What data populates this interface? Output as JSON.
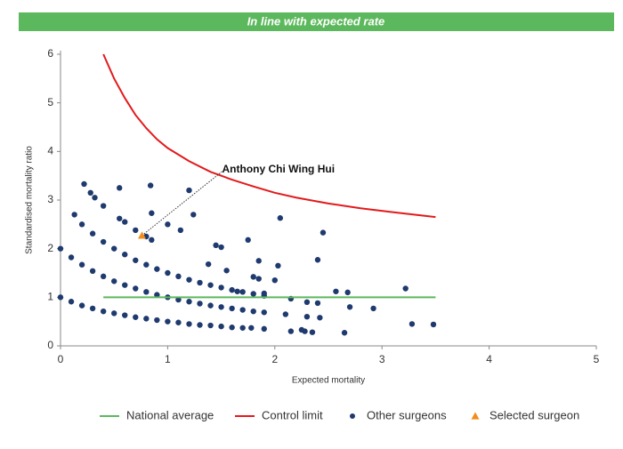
{
  "chart_data": {
    "type": "scatter",
    "banner": "In line with expected rate",
    "xlabel": "Expected mortality",
    "ylabel": "Standardised mortality ratio",
    "xlim": [
      0,
      5
    ],
    "ylim": [
      0,
      6
    ],
    "xticks": [
      0,
      1,
      2,
      3,
      4,
      5
    ],
    "yticks": [
      0,
      1,
      2,
      3,
      4,
      5,
      6
    ],
    "annotation": "Anthony Chi Wing Hui",
    "series": [
      {
        "name": "National average",
        "marker": "line",
        "color": "#5cb85c",
        "x": [
          0.4,
          3.5
        ],
        "values": [
          1,
          1
        ]
      },
      {
        "name": "Control limit",
        "marker": "line",
        "color": "#e31a1c",
        "x": [
          0.4,
          0.5,
          0.6,
          0.7,
          0.8,
          0.9,
          1.0,
          1.2,
          1.4,
          1.6,
          1.8,
          2.0,
          2.2,
          2.5,
          2.8,
          3.1,
          3.5
        ],
        "values": [
          6.0,
          5.5,
          5.1,
          4.75,
          4.48,
          4.25,
          4.07,
          3.8,
          3.58,
          3.42,
          3.28,
          3.15,
          3.05,
          2.93,
          2.83,
          2.75,
          2.65
        ]
      },
      {
        "name": "Other surgeons",
        "marker": "circle",
        "color": "#1f3a6e",
        "x": [
          0,
          0.1,
          0.2,
          0.3,
          0.4,
          0.5,
          0.6,
          0.7,
          0.8,
          0.9,
          1.0,
          1.1,
          1.2,
          1.3,
          1.4,
          1.5,
          1.6,
          1.7,
          0,
          0.1,
          0.2,
          0.3,
          0.4,
          0.5,
          0.6,
          0.7,
          0.8,
          0.9,
          1.0,
          1.1,
          1.2,
          1.3,
          1.4,
          1.5,
          1.6,
          1.7,
          1.8,
          1.9,
          0.2,
          0.3,
          0.4,
          0.5,
          0.6,
          0.7,
          0.8,
          0.9,
          1.0,
          1.1,
          1.2,
          1.3,
          1.4,
          1.5,
          1.6,
          1.7,
          1.8,
          1.9,
          0.55,
          0.6,
          0.7,
          0.8,
          0.85,
          0.13,
          0.22,
          0.28,
          0.32,
          0.4,
          0.55,
          0.84,
          0.85,
          1.0,
          1.12,
          1.2,
          1.24,
          1.45,
          1.5,
          1.75,
          2.05,
          2.45,
          1.85,
          2.03,
          2.4,
          1.38,
          1.55,
          1.8,
          1.85,
          2.0,
          1.65,
          1.9,
          2.15,
          2.3,
          2.4,
          2.57,
          2.68,
          3.22,
          2.7,
          2.92,
          2.1,
          2.3,
          2.42,
          1.78,
          1.9,
          2.15,
          2.28,
          2.35,
          2.65,
          3.28,
          3.48,
          2.25
        ],
        "values": [
          1.0,
          0.91,
          0.83,
          0.77,
          0.71,
          0.67,
          0.63,
          0.59,
          0.56,
          0.53,
          0.5,
          0.48,
          0.45,
          0.43,
          0.42,
          0.4,
          0.38,
          0.37,
          2.0,
          1.82,
          1.67,
          1.54,
          1.43,
          1.33,
          1.25,
          1.18,
          1.11,
          1.05,
          1.0,
          0.95,
          0.91,
          0.87,
          0.83,
          0.8,
          0.77,
          0.74,
          0.71,
          0.69,
          2.5,
          2.31,
          2.14,
          2.0,
          1.88,
          1.76,
          1.67,
          1.58,
          1.5,
          1.43,
          1.36,
          1.3,
          1.25,
          1.2,
          1.15,
          1.11,
          1.07,
          1.03,
          2.62,
          2.55,
          2.38,
          2.25,
          2.18,
          2.7,
          3.33,
          3.15,
          3.05,
          2.88,
          3.25,
          3.3,
          2.73,
          2.5,
          2.38,
          3.2,
          2.7,
          2.07,
          2.03,
          2.18,
          2.63,
          2.33,
          1.75,
          1.65,
          1.77,
          1.68,
          1.55,
          1.42,
          1.38,
          1.35,
          1.12,
          1.08,
          0.97,
          0.9,
          0.88,
          1.12,
          1.1,
          1.18,
          0.8,
          0.77,
          0.65,
          0.6,
          0.58,
          0.37,
          0.35,
          0.3,
          0.3,
          0.28,
          0.27,
          0.45,
          0.44,
          0.33
        ]
      },
      {
        "name": "Selected surgeon",
        "marker": "triangle",
        "color": "#f28c1c",
        "x": [
          0.76
        ],
        "values": [
          2.27
        ]
      }
    ]
  }
}
